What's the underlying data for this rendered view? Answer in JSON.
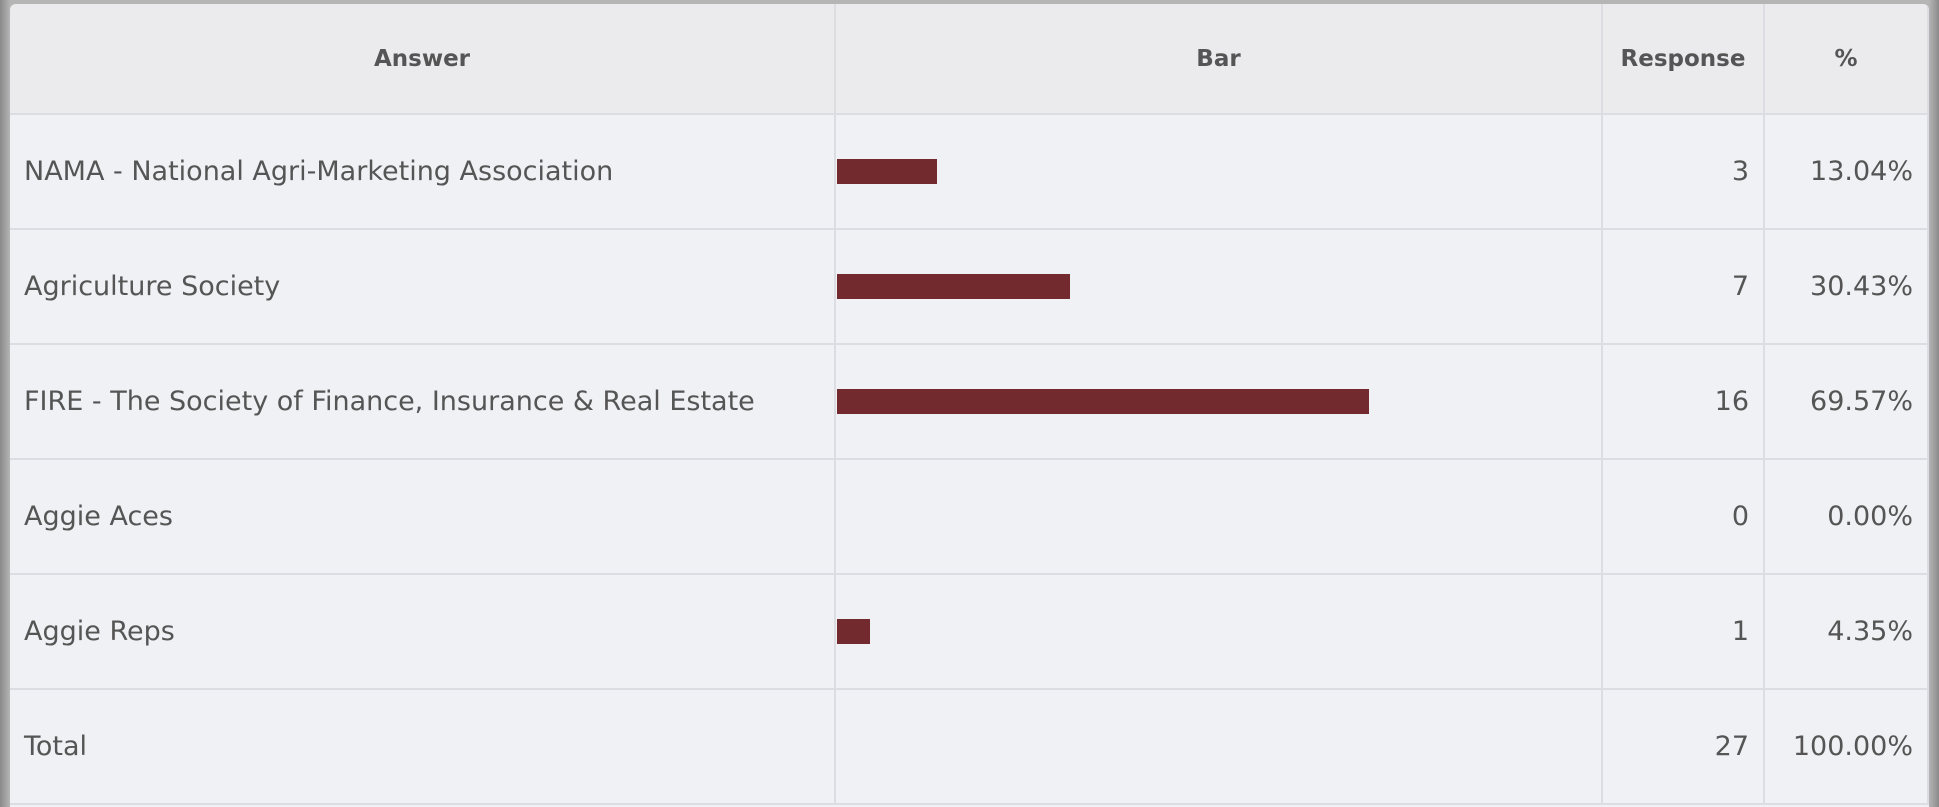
{
  "table": {
    "headers": [
      "Answer",
      "Bar",
      "Response",
      "%"
    ],
    "rows": [
      {
        "answer": "NAMA - National Agri-Marketing Association",
        "response": 3,
        "percent": {
          "value": 13.04,
          "label": "13.04%"
        }
      },
      {
        "answer": "Agriculture Society",
        "response": 7,
        "percent": {
          "value": 30.43,
          "label": "30.43%"
        }
      },
      {
        "answer": "FIRE - The Society of Finance, Insurance & Real Estate",
        "response": 16,
        "percent": {
          "value": 69.57,
          "label": "69.57%"
        }
      },
      {
        "answer": "Aggie Aces",
        "response": 0,
        "percent": {
          "value": 0,
          "label": "0.00%"
        }
      },
      {
        "answer": "Aggie Reps",
        "response": 1,
        "percent": {
          "value": 4.35,
          "label": "4.35%"
        }
      }
    ],
    "total": {
      "answer": "Total",
      "response": 27,
      "percent": "100.00%"
    },
    "bar_color": "#722a2e"
  }
}
